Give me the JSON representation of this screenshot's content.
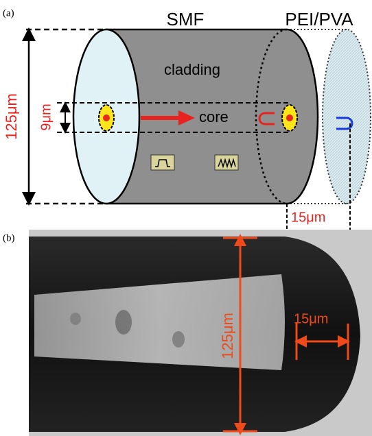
{
  "panel_a": {
    "label": "(a)",
    "fiber": "SMF",
    "coating": "PEI/PVA",
    "cladding": "cladding",
    "core": "core",
    "diameter": "125μm",
    "core_diameter": "9μm",
    "coating_thickness": "15μm"
  },
  "panel_b": {
    "label": "(b)",
    "diameter": "125μm",
    "coating_thickness": "15μm"
  }
}
